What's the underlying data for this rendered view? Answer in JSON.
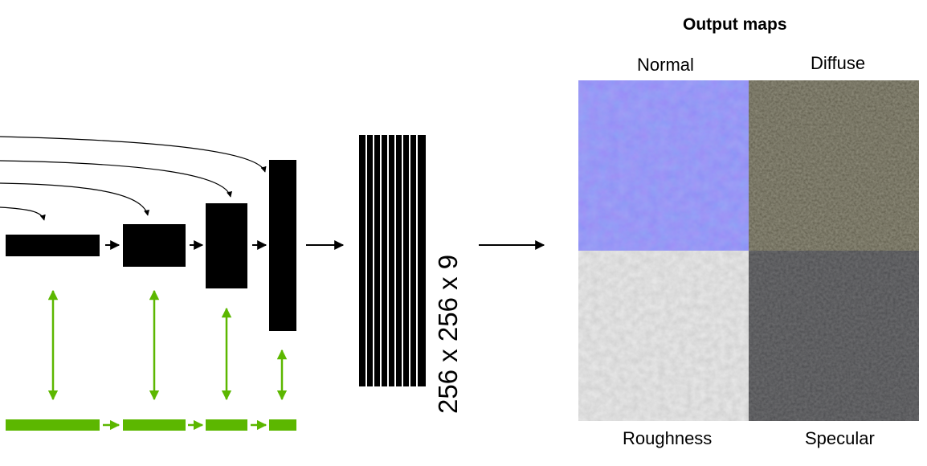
{
  "feature_dims": "256 x 256 x 9",
  "output": {
    "title": "Output maps",
    "maps": [
      {
        "label": "Normal",
        "color": "#7272f2"
      },
      {
        "label": "Diffuse",
        "color": "#4d4a3a"
      },
      {
        "label": "Roughness",
        "color": "#cfcfcf"
      },
      {
        "label": "Specular",
        "color": "#333436"
      }
    ]
  },
  "colors": {
    "green": "#5cb700",
    "black": "#000000"
  }
}
